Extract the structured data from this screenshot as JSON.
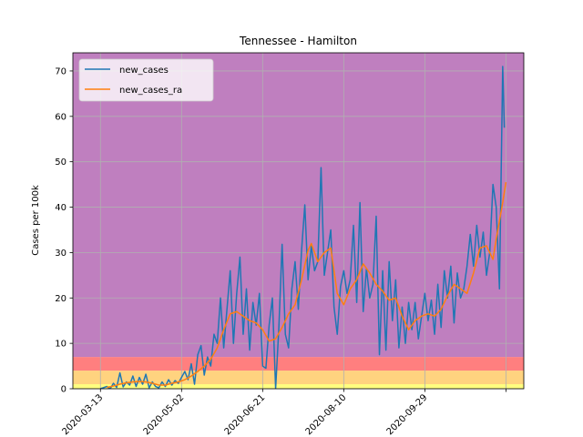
{
  "chart_data": {
    "type": "line",
    "title": "Tennessee - Hamilton",
    "xlabel": "",
    "ylabel": "Cases per 100k",
    "xlim": [
      "2020-02-25",
      "2020-11-29"
    ],
    "ylim": [
      0,
      74
    ],
    "grid": true,
    "legend_position": "top-left",
    "x_tick_labels": [
      "2020-03-13",
      "2020-05-02",
      "2020-06-21",
      "2020-08-10",
      "2020-09-29",
      ""
    ],
    "x_ticks": [
      "2020-03-13",
      "2020-05-02",
      "2020-06-21",
      "2020-08-10",
      "2020-09-29",
      "2020-11-18"
    ],
    "y_ticks": [
      0,
      10,
      20,
      30,
      40,
      50,
      60,
      70
    ],
    "bands": [
      {
        "from": 0,
        "to": 1,
        "color": "#ffff7f"
      },
      {
        "from": 1,
        "to": 4,
        "color": "#ffd37f"
      },
      {
        "from": 4,
        "to": 7,
        "color": "#ff7f7f"
      },
      {
        "from": 7,
        "to": 74,
        "color": "#bf7fbf"
      }
    ],
    "series": [
      {
        "name": "new_cases",
        "color": "#1f77b4",
        "points": [
          [
            "2020-03-13",
            0
          ],
          [
            "2020-03-17",
            0.5
          ],
          [
            "2020-03-19",
            0
          ],
          [
            "2020-03-21",
            1.2
          ],
          [
            "2020-03-23",
            0.3
          ],
          [
            "2020-03-25",
            3.5
          ],
          [
            "2020-03-27",
            0.4
          ],
          [
            "2020-03-29",
            1.5
          ],
          [
            "2020-03-31",
            0.8
          ],
          [
            "2020-04-02",
            2.8
          ],
          [
            "2020-04-04",
            0.5
          ],
          [
            "2020-04-06",
            2.5
          ],
          [
            "2020-04-08",
            1.0
          ],
          [
            "2020-04-10",
            3.2
          ],
          [
            "2020-04-12",
            0.2
          ],
          [
            "2020-04-14",
            1.5
          ],
          [
            "2020-04-16",
            0.5
          ],
          [
            "2020-04-18",
            0.2
          ],
          [
            "2020-04-20",
            1.5
          ],
          [
            "2020-04-22",
            0.5
          ],
          [
            "2020-04-24",
            2.0
          ],
          [
            "2020-04-26",
            0.8
          ],
          [
            "2020-04-28",
            1.8
          ],
          [
            "2020-04-30",
            1.2
          ],
          [
            "2020-05-02",
            2.5
          ],
          [
            "2020-05-04",
            3.8
          ],
          [
            "2020-05-06",
            2.0
          ],
          [
            "2020-05-08",
            5.5
          ],
          [
            "2020-05-10",
            1.0
          ],
          [
            "2020-05-12",
            7.5
          ],
          [
            "2020-05-14",
            9.5
          ],
          [
            "2020-05-16",
            3.0
          ],
          [
            "2020-05-18",
            7.0
          ],
          [
            "2020-05-20",
            5.0
          ],
          [
            "2020-05-22",
            12.0
          ],
          [
            "2020-05-24",
            10.0
          ],
          [
            "2020-05-26",
            20.0
          ],
          [
            "2020-05-28",
            9.0
          ],
          [
            "2020-05-30",
            17.5
          ],
          [
            "2020-06-01",
            26.0
          ],
          [
            "2020-06-03",
            10.0
          ],
          [
            "2020-06-05",
            21.0
          ],
          [
            "2020-06-07",
            29.0
          ],
          [
            "2020-06-09",
            12.0
          ],
          [
            "2020-06-11",
            22.0
          ],
          [
            "2020-06-13",
            8.5
          ],
          [
            "2020-06-15",
            19.0
          ],
          [
            "2020-06-17",
            14.0
          ],
          [
            "2020-06-19",
            21.0
          ],
          [
            "2020-06-21",
            5.0
          ],
          [
            "2020-06-23",
            4.5
          ],
          [
            "2020-06-25",
            14.0
          ],
          [
            "2020-06-27",
            20.0
          ],
          [
            "2020-06-29",
            0.0
          ],
          [
            "2020-07-01",
            13.5
          ],
          [
            "2020-07-03",
            31.8
          ],
          [
            "2020-07-05",
            12.0
          ],
          [
            "2020-07-07",
            9.0
          ],
          [
            "2020-07-09",
            22.0
          ],
          [
            "2020-07-11",
            28.0
          ],
          [
            "2020-07-13",
            17.5
          ],
          [
            "2020-07-15",
            30.5
          ],
          [
            "2020-07-17",
            40.5
          ],
          [
            "2020-07-19",
            24.0
          ],
          [
            "2020-07-21",
            31.5
          ],
          [
            "2020-07-23",
            26.0
          ],
          [
            "2020-07-25",
            28.0
          ],
          [
            "2020-07-27",
            48.7
          ],
          [
            "2020-07-29",
            25.0
          ],
          [
            "2020-07-31",
            30.0
          ],
          [
            "2020-08-02",
            35.0
          ],
          [
            "2020-08-04",
            18.0
          ],
          [
            "2020-08-06",
            12.0
          ],
          [
            "2020-08-08",
            22.5
          ],
          [
            "2020-08-10",
            26.0
          ],
          [
            "2020-08-12",
            21.0
          ],
          [
            "2020-08-14",
            24.0
          ],
          [
            "2020-08-16",
            36.0
          ],
          [
            "2020-08-18",
            19.0
          ],
          [
            "2020-08-20",
            41.0
          ],
          [
            "2020-08-22",
            17.0
          ],
          [
            "2020-08-24",
            26.5
          ],
          [
            "2020-08-26",
            20.0
          ],
          [
            "2020-08-28",
            23.0
          ],
          [
            "2020-08-30",
            38.0
          ],
          [
            "2020-09-01",
            7.5
          ],
          [
            "2020-09-03",
            26.0
          ],
          [
            "2020-09-05",
            8.5
          ],
          [
            "2020-09-07",
            28.0
          ],
          [
            "2020-09-09",
            15.0
          ],
          [
            "2020-09-11",
            24.0
          ],
          [
            "2020-09-13",
            9.0
          ],
          [
            "2020-09-15",
            18.0
          ],
          [
            "2020-09-17",
            10.0
          ],
          [
            "2020-09-19",
            19.0
          ],
          [
            "2020-09-21",
            13.0
          ],
          [
            "2020-09-23",
            19.0
          ],
          [
            "2020-09-25",
            11.0
          ],
          [
            "2020-09-27",
            16.0
          ],
          [
            "2020-09-29",
            21.0
          ],
          [
            "2020-10-01",
            15.0
          ],
          [
            "2020-10-03",
            19.5
          ],
          [
            "2020-10-05",
            12.0
          ],
          [
            "2020-10-07",
            23.0
          ],
          [
            "2020-10-09",
            13.5
          ],
          [
            "2020-10-11",
            26.0
          ],
          [
            "2020-10-13",
            20.0
          ],
          [
            "2020-10-15",
            27.0
          ],
          [
            "2020-10-17",
            14.5
          ],
          [
            "2020-10-19",
            25.5
          ],
          [
            "2020-10-21",
            20.0
          ],
          [
            "2020-10-23",
            22.0
          ],
          [
            "2020-10-25",
            27.0
          ],
          [
            "2020-10-27",
            34.0
          ],
          [
            "2020-10-29",
            27.0
          ],
          [
            "2020-10-31",
            36.0
          ],
          [
            "2020-11-02",
            29.0
          ],
          [
            "2020-11-04",
            34.5
          ],
          [
            "2020-11-06",
            25.0
          ],
          [
            "2020-11-08",
            30.0
          ],
          [
            "2020-11-10",
            45.0
          ],
          [
            "2020-11-12",
            40.0
          ],
          [
            "2020-11-14",
            22.0
          ],
          [
            "2020-11-16",
            71.0
          ],
          [
            "2020-11-17",
            57.5
          ]
        ]
      },
      {
        "name": "new_cases_ra",
        "color": "#ff7f0e",
        "points": [
          [
            "2020-03-17",
            0.3
          ],
          [
            "2020-03-21",
            0.6
          ],
          [
            "2020-03-25",
            1.0
          ],
          [
            "2020-03-29",
            1.3
          ],
          [
            "2020-04-02",
            1.5
          ],
          [
            "2020-04-06",
            1.6
          ],
          [
            "2020-04-10",
            1.5
          ],
          [
            "2020-04-14",
            1.2
          ],
          [
            "2020-04-18",
            0.8
          ],
          [
            "2020-04-22",
            0.8
          ],
          [
            "2020-04-26",
            1.2
          ],
          [
            "2020-04-30",
            1.5
          ],
          [
            "2020-05-04",
            2.0
          ],
          [
            "2020-05-08",
            2.8
          ],
          [
            "2020-05-12",
            3.8
          ],
          [
            "2020-05-16",
            5.0
          ],
          [
            "2020-05-20",
            6.5
          ],
          [
            "2020-05-24",
            9.0
          ],
          [
            "2020-05-28",
            13.0
          ],
          [
            "2020-06-01",
            16.5
          ],
          [
            "2020-06-05",
            17.0
          ],
          [
            "2020-06-09",
            16.0
          ],
          [
            "2020-06-13",
            15.0
          ],
          [
            "2020-06-17",
            14.5
          ],
          [
            "2020-06-21",
            13.0
          ],
          [
            "2020-06-25",
            10.5
          ],
          [
            "2020-06-29",
            11.0
          ],
          [
            "2020-07-03",
            13.5
          ],
          [
            "2020-07-07",
            16.5
          ],
          [
            "2020-07-11",
            18.5
          ],
          [
            "2020-07-15",
            24.0
          ],
          [
            "2020-07-19",
            30.5
          ],
          [
            "2020-07-21",
            32.0
          ],
          [
            "2020-07-25",
            28.0
          ],
          [
            "2020-07-29",
            30.0
          ],
          [
            "2020-08-02",
            31.0
          ],
          [
            "2020-08-06",
            21.0
          ],
          [
            "2020-08-10",
            18.5
          ],
          [
            "2020-08-14",
            22.0
          ],
          [
            "2020-08-18",
            24.0
          ],
          [
            "2020-08-22",
            27.5
          ],
          [
            "2020-08-26",
            25.5
          ],
          [
            "2020-08-30",
            23.0
          ],
          [
            "2020-09-03",
            21.5
          ],
          [
            "2020-09-07",
            19.5
          ],
          [
            "2020-09-11",
            20.0
          ],
          [
            "2020-09-15",
            16.0
          ],
          [
            "2020-09-19",
            13.0
          ],
          [
            "2020-09-23",
            15.0
          ],
          [
            "2020-09-27",
            16.0
          ],
          [
            "2020-10-01",
            16.5
          ],
          [
            "2020-10-05",
            16.0
          ],
          [
            "2020-10-09",
            17.5
          ],
          [
            "2020-10-13",
            20.5
          ],
          [
            "2020-10-17",
            23.0
          ],
          [
            "2020-10-21",
            22.0
          ],
          [
            "2020-10-25",
            21.0
          ],
          [
            "2020-10-29",
            25.5
          ],
          [
            "2020-11-02",
            31.0
          ],
          [
            "2020-11-06",
            31.5
          ],
          [
            "2020-11-10",
            28.5
          ],
          [
            "2020-11-12",
            33.0
          ],
          [
            "2020-11-14",
            37.0
          ],
          [
            "2020-11-16",
            41.0
          ],
          [
            "2020-11-18",
            45.5
          ]
        ]
      }
    ]
  }
}
